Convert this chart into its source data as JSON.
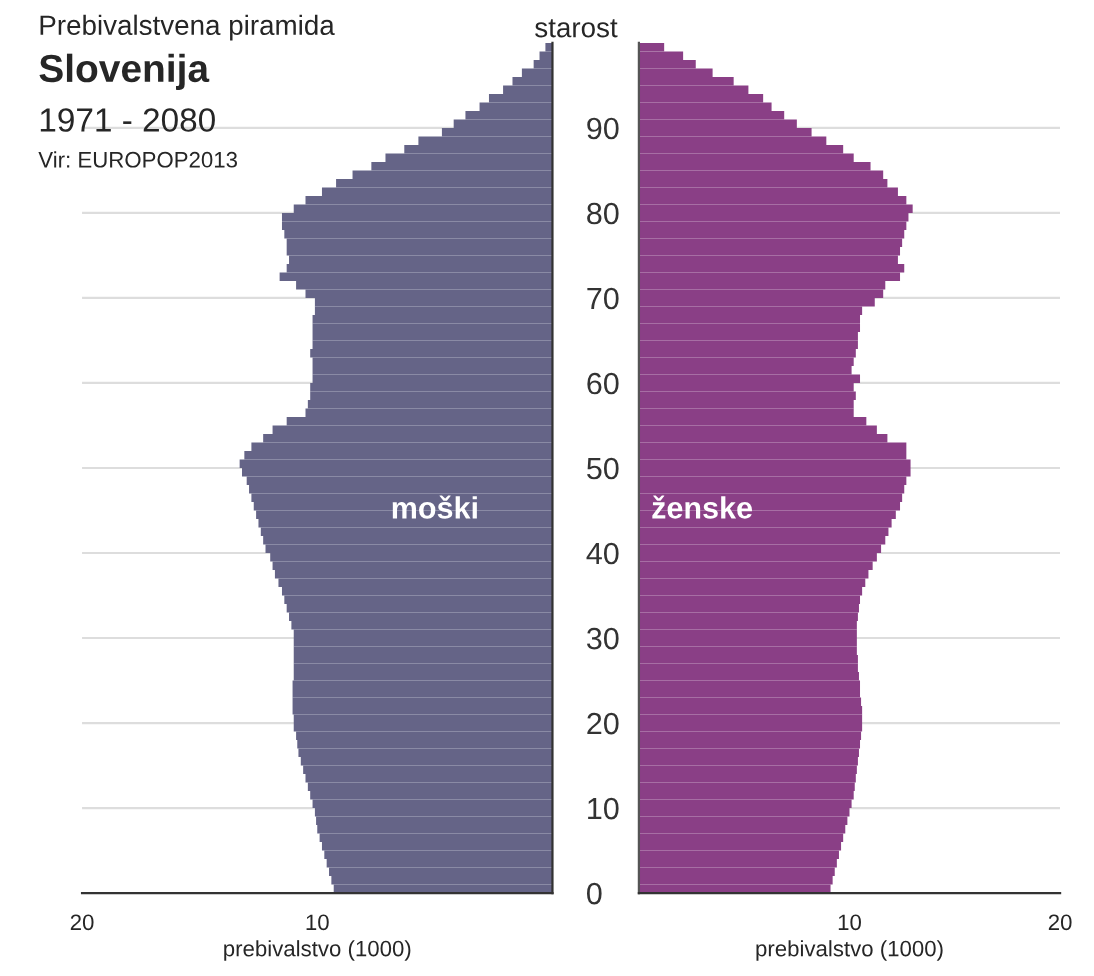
{
  "chart_data": [
    {
      "type": "bar",
      "orientation": "horizontal",
      "title": "Prebivalstvena piramida",
      "subtitle": "Slovenija",
      "annotations": [
        "1971 - 2080",
        "Vir: EUROPOP2013"
      ],
      "xlabel": "prebivalstvo (1000)",
      "ylabel": "starost",
      "x": [
        0.5,
        1.5,
        2.5,
        3.5,
        4.5,
        5.5,
        6.5,
        7.5,
        8.5,
        9.5,
        10.5,
        11.5,
        12.5,
        13.5,
        14.5,
        15.5,
        16.5,
        17.5,
        18.5,
        19.5,
        20.5,
        21.5,
        22.5,
        23.5,
        24.5,
        25.5,
        26.5,
        27.5,
        28.5,
        29.5,
        30.5,
        31.5,
        32.5,
        33.5,
        34.5,
        35.5,
        36.5,
        37.5,
        38.5,
        39.5,
        40.5,
        41.5,
        42.5,
        43.5,
        44.5,
        45.5,
        46.5,
        47.5,
        48.5,
        49.5,
        50.5,
        51.5,
        52.5,
        53.5,
        54.5,
        55.5,
        56.5,
        57.5,
        58.5,
        59.5,
        60.5,
        61.5,
        62.5,
        63.5,
        64.5,
        65.5,
        66.5,
        67.5,
        68.5,
        69.5,
        70.5,
        71.5,
        72.5,
        73.5,
        74.5,
        75.5,
        76.5,
        77.5,
        78.5,
        79.5,
        80.5,
        81.5,
        82.5,
        83.5,
        84.5,
        85.5,
        86.5,
        87.5,
        88.5,
        89.5,
        90.5,
        91.5,
        92.5,
        93.5,
        94.5,
        95.5,
        96.5,
        97.5,
        98.5,
        99.5
      ],
      "series": [
        {
          "name": "moški",
          "color": "#656487",
          "values": [
            9.3,
            9.4,
            9.5,
            9.6,
            9.7,
            9.8,
            9.9,
            10.0,
            10.05,
            10.1,
            10.2,
            10.3,
            10.4,
            10.5,
            10.6,
            10.7,
            10.8,
            10.85,
            10.9,
            11.0,
            11.0,
            11.05,
            11.05,
            11.05,
            11.05,
            11.0,
            11.0,
            11.0,
            11.0,
            11.0,
            11.0,
            11.1,
            11.2,
            11.3,
            11.4,
            11.5,
            11.65,
            11.8,
            11.9,
            12.0,
            12.2,
            12.3,
            12.4,
            12.5,
            12.6,
            12.7,
            12.8,
            12.9,
            13.0,
            13.2,
            13.3,
            13.1,
            12.8,
            12.3,
            11.9,
            11.3,
            10.5,
            10.4,
            10.3,
            10.3,
            10.2,
            10.2,
            10.2,
            10.3,
            10.2,
            10.2,
            10.2,
            10.2,
            10.1,
            10.1,
            10.5,
            10.9,
            11.6,
            11.3,
            11.2,
            11.3,
            11.3,
            11.4,
            11.5,
            11.5,
            11.0,
            10.5,
            9.8,
            9.2,
            8.5,
            7.7,
            7.1,
            6.3,
            5.7,
            4.7,
            4.2,
            3.7,
            3.1,
            2.7,
            2.1,
            1.7,
            1.3,
            0.8,
            0.55,
            0.3
          ]
        }
      ],
      "xlim": [
        20,
        0
      ],
      "xticks": [
        20,
        10
      ],
      "ylim": [
        0,
        100
      ],
      "yticks": [
        0,
        10,
        20,
        30,
        40,
        50,
        60,
        70,
        80,
        90
      ],
      "grid": "y"
    },
    {
      "type": "bar",
      "orientation": "horizontal",
      "xlabel": "prebivalstvo (1000)",
      "x": [
        0.5,
        1.5,
        2.5,
        3.5,
        4.5,
        5.5,
        6.5,
        7.5,
        8.5,
        9.5,
        10.5,
        11.5,
        12.5,
        13.5,
        14.5,
        15.5,
        16.5,
        17.5,
        18.5,
        19.5,
        20.5,
        21.5,
        22.5,
        23.5,
        24.5,
        25.5,
        26.5,
        27.5,
        28.5,
        29.5,
        30.5,
        31.5,
        32.5,
        33.5,
        34.5,
        35.5,
        36.5,
        37.5,
        38.5,
        39.5,
        40.5,
        41.5,
        42.5,
        43.5,
        44.5,
        45.5,
        46.5,
        47.5,
        48.5,
        49.5,
        50.5,
        51.5,
        52.5,
        53.5,
        54.5,
        55.5,
        56.5,
        57.5,
        58.5,
        59.5,
        60.5,
        61.5,
        62.5,
        63.5,
        64.5,
        65.5,
        66.5,
        67.5,
        68.5,
        69.5,
        70.5,
        71.5,
        72.5,
        73.5,
        74.5,
        75.5,
        76.5,
        77.5,
        78.5,
        79.5,
        80.5,
        81.5,
        82.5,
        83.5,
        84.5,
        85.5,
        86.5,
        87.5,
        88.5,
        89.5,
        90.5,
        91.5,
        92.5,
        93.5,
        94.5,
        95.5,
        96.5,
        97.5,
        98.5,
        99.5
      ],
      "series": [
        {
          "name": "ženske",
          "color": "#8a3f86",
          "values": [
            9.1,
            9.2,
            9.3,
            9.4,
            9.5,
            9.6,
            9.7,
            9.8,
            9.9,
            10.0,
            10.1,
            10.2,
            10.25,
            10.3,
            10.35,
            10.4,
            10.45,
            10.5,
            10.55,
            10.6,
            10.6,
            10.6,
            10.55,
            10.5,
            10.5,
            10.45,
            10.4,
            10.4,
            10.35,
            10.35,
            10.35,
            10.35,
            10.4,
            10.45,
            10.5,
            10.6,
            10.75,
            10.9,
            11.1,
            11.3,
            11.5,
            11.7,
            11.85,
            12.0,
            12.2,
            12.4,
            12.5,
            12.6,
            12.7,
            12.9,
            12.9,
            12.7,
            12.7,
            11.8,
            11.3,
            10.8,
            10.2,
            10.2,
            10.3,
            10.2,
            10.5,
            10.1,
            10.2,
            10.3,
            10.4,
            10.4,
            10.5,
            10.5,
            10.6,
            11.2,
            11.6,
            11.7,
            12.4,
            12.6,
            12.3,
            12.4,
            12.5,
            12.6,
            12.7,
            12.8,
            13.0,
            12.7,
            12.3,
            11.8,
            11.6,
            11.0,
            10.2,
            9.7,
            8.9,
            8.2,
            7.5,
            6.9,
            6.3,
            5.9,
            5.2,
            4.5,
            3.5,
            2.7,
            2.1,
            1.2
          ]
        }
      ],
      "xlim": [
        0,
        20
      ],
      "xticks": [
        10,
        20
      ],
      "ylim": [
        0,
        100
      ],
      "yticks": [
        0,
        10,
        20,
        30,
        40,
        50,
        60,
        70,
        80,
        90
      ],
      "grid": "y",
      "tick_labels": "x"
    }
  ]
}
